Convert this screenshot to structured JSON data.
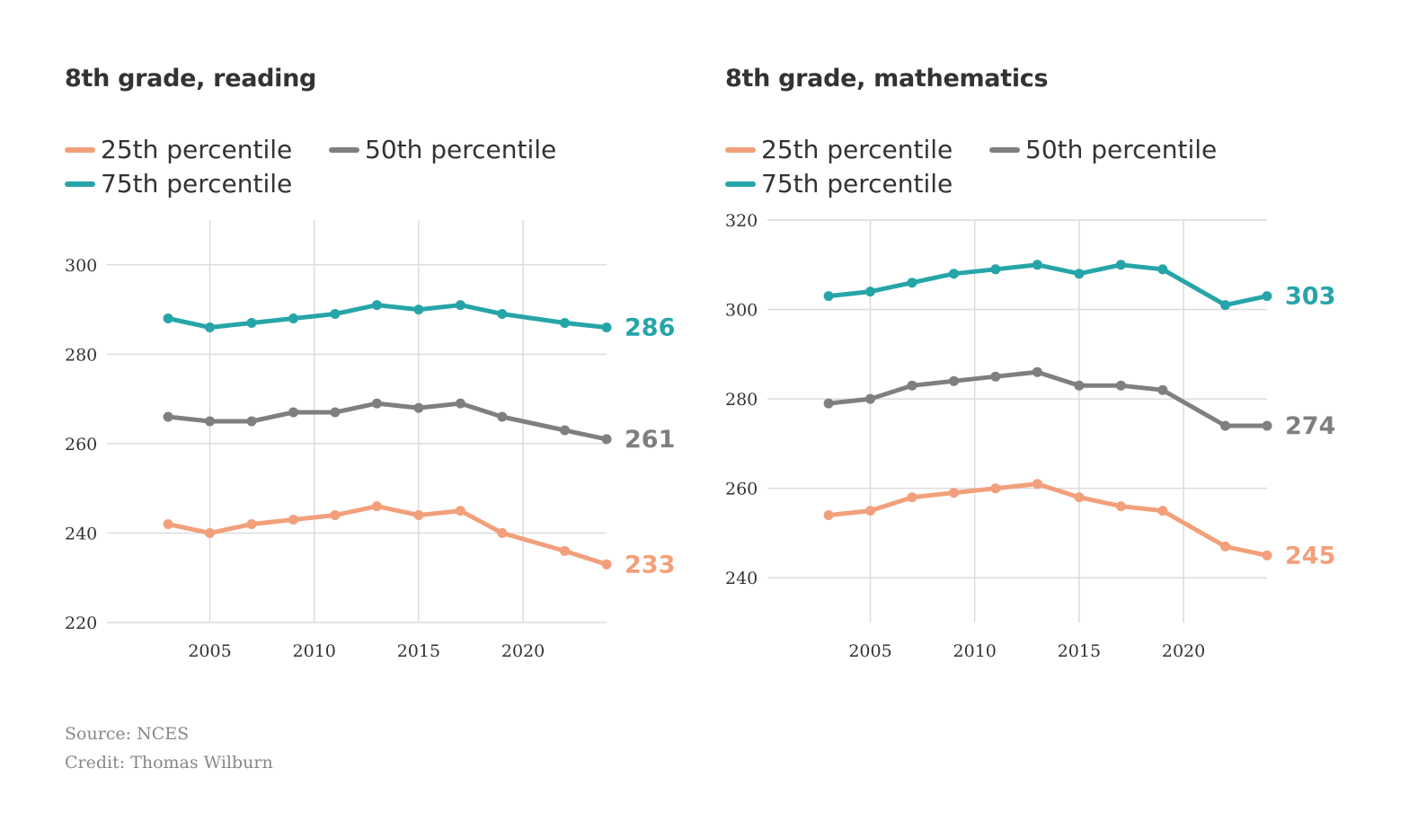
{
  "colors": {
    "p25": "#f2a07b",
    "p50": "#7f7f7f",
    "p75": "#26a5a9",
    "grid": "#dcdcdc"
  },
  "source": "Source: NCES",
  "credit": "Credit: Thomas Wilburn",
  "chart_data": [
    {
      "type": "line",
      "title": "8th grade, reading",
      "x": [
        2003,
        2005,
        2007,
        2009,
        2011,
        2013,
        2015,
        2017,
        2019,
        2022,
        2024
      ],
      "xticks": [
        "2005",
        "2010",
        "2015",
        "2020"
      ],
      "yticks": [
        "220",
        "240",
        "260",
        "280",
        "300"
      ],
      "ylim": [
        220,
        310
      ],
      "xlim": [
        2000.2,
        2024
      ],
      "grid": true,
      "legend_position": "top",
      "series": [
        {
          "name": "25th percentile",
          "key": "p25",
          "values": [
            242,
            240,
            242,
            243,
            244,
            246,
            244,
            245,
            240,
            236,
            233
          ],
          "end_label": "233"
        },
        {
          "name": "50th percentile",
          "key": "p50",
          "values": [
            266,
            265,
            265,
            267,
            267,
            269,
            268,
            269,
            266,
            263,
            261
          ],
          "end_label": "261"
        },
        {
          "name": "75th percentile",
          "key": "p75",
          "values": [
            288,
            286,
            287,
            288,
            289,
            291,
            290,
            291,
            289,
            287,
            286
          ],
          "end_label": "286"
        }
      ]
    },
    {
      "type": "line",
      "title": "8th grade, mathematics",
      "x": [
        2003,
        2005,
        2007,
        2009,
        2011,
        2013,
        2015,
        2017,
        2019,
        2022,
        2024
      ],
      "xticks": [
        "2005",
        "2010",
        "2015",
        "2020"
      ],
      "yticks": [
        "240",
        "260",
        "280",
        "300",
        "320"
      ],
      "ylim": [
        230,
        320
      ],
      "xlim": [
        2000.2,
        2024
      ],
      "grid": true,
      "legend_position": "top",
      "series": [
        {
          "name": "25th percentile",
          "key": "p25",
          "values": [
            254,
            255,
            258,
            259,
            260,
            261,
            258,
            256,
            255,
            247,
            245
          ],
          "end_label": "245"
        },
        {
          "name": "50th percentile",
          "key": "p50",
          "values": [
            279,
            280,
            283,
            284,
            285,
            286,
            283,
            283,
            282,
            274,
            274
          ],
          "end_label": "274"
        },
        {
          "name": "75th percentile",
          "key": "p75",
          "values": [
            303,
            304,
            306,
            308,
            309,
            310,
            308,
            310,
            309,
            301,
            303
          ],
          "end_label": "303"
        }
      ]
    }
  ]
}
